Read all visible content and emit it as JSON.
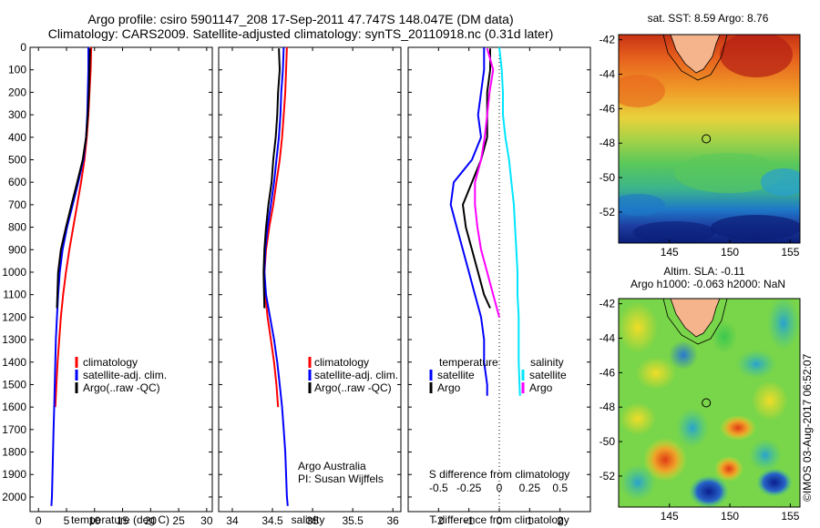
{
  "header": {
    "line1": "Argo profile: csiro 5901147_208 17-Sep-2011 47.747S 148.047E (DM data)",
    "line2": "Climatology: CARS2009. Satellite-adjusted climatology: synTS_20110918.nc (0.31d later)"
  },
  "colors": {
    "climatology": "#ff0000",
    "satellite": "#0000ff",
    "argo": "#000000",
    "sal_satellite": "#00e5ff",
    "sal_argo": "#ff00ff"
  },
  "chart_data": [
    {
      "type": "line",
      "id": "temperature",
      "xlabel": "temperature (deg C)",
      "xticks": [
        0,
        5,
        10,
        15,
        20,
        25,
        30
      ],
      "yticks": [
        0,
        100,
        200,
        300,
        400,
        500,
        600,
        700,
        800,
        900,
        1000,
        1100,
        1200,
        1300,
        1400,
        1500,
        1600,
        1700,
        1800,
        1900,
        2000
      ],
      "xlim": [
        -1.5,
        31
      ],
      "ylim": [
        0,
        2065
      ],
      "y_reversed": true,
      "legend": {
        "placement": "lower-left",
        "entries": [
          "climatology",
          "satellite-adj. clim.",
          "Argo(..raw -QC)"
        ]
      },
      "series": [
        {
          "name": "climatology",
          "color": "#ff0000",
          "x": [
            9.4,
            9.3,
            9.1,
            8.9,
            8.6,
            8.2,
            7.6,
            6.9,
            6.2,
            5.5,
            4.9,
            4.4,
            4.0,
            3.7,
            3.4,
            3.2,
            3.0
          ],
          "y": [
            0,
            100,
            200,
            300,
            400,
            500,
            600,
            700,
            800,
            900,
            1000,
            1100,
            1200,
            1300,
            1400,
            1500,
            1600
          ]
        },
        {
          "name": "satellite-adj. clim.",
          "color": "#0000ff",
          "x": [
            8.9,
            8.9,
            8.8,
            8.7,
            8.5,
            8.0,
            7.1,
            6.1,
            5.1,
            4.3,
            3.8,
            3.5,
            3.3,
            3.1,
            3.0,
            2.9,
            2.8,
            2.7,
            2.6,
            2.5,
            2.4,
            2.3
          ],
          "y": [
            0,
            100,
            200,
            300,
            400,
            500,
            600,
            700,
            800,
            900,
            1000,
            1100,
            1200,
            1300,
            1400,
            1500,
            1600,
            1700,
            1800,
            1900,
            2000,
            2040
          ]
        },
        {
          "name": "Argo(..raw -QC)",
          "color": "#000000",
          "x": [
            9.2,
            9.1,
            9.0,
            8.8,
            8.5,
            7.9,
            6.9,
            5.9,
            4.9,
            4.0,
            3.5,
            3.3
          ],
          "y": [
            5,
            100,
            200,
            300,
            400,
            500,
            600,
            700,
            800,
            900,
            1000,
            1160
          ]
        }
      ]
    },
    {
      "type": "line",
      "id": "salinity",
      "xlabel": "salinity",
      "xticks": [
        34,
        34.5,
        35,
        35.5,
        36
      ],
      "xlabels": [
        "34",
        "34.5",
        "35",
        "35.5",
        "36"
      ],
      "yticks": [
        0,
        100,
        200,
        300,
        400,
        500,
        600,
        700,
        800,
        900,
        1000,
        1100,
        1200,
        1300,
        1400,
        1500,
        1600,
        1700,
        1800,
        1900,
        2000
      ],
      "xlim": [
        33.83,
        36.1
      ],
      "ylim": [
        0,
        2065
      ],
      "y_reversed": true,
      "annotation": [
        "Argo Australia",
        "PI: Susan Wijffels"
      ],
      "legend": {
        "placement": "lower-right",
        "entries": [
          "climatology",
          "satellite-adj. clim.",
          "Argo(..raw -QC)"
        ]
      },
      "series": [
        {
          "name": "climatology",
          "color": "#ff0000",
          "x": [
            34.68,
            34.67,
            34.66,
            34.64,
            34.62,
            34.59,
            34.55,
            34.51,
            34.46,
            34.42,
            34.4,
            34.41,
            34.44,
            34.48,
            34.52,
            34.55,
            34.57
          ],
          "y": [
            0,
            100,
            200,
            300,
            400,
            500,
            600,
            700,
            800,
            900,
            1000,
            1100,
            1200,
            1300,
            1400,
            1500,
            1600
          ]
        },
        {
          "name": "satellite-adj. clim.",
          "color": "#0000ff",
          "x": [
            34.64,
            34.63,
            34.61,
            34.6,
            34.58,
            34.55,
            34.52,
            34.48,
            34.44,
            34.41,
            34.4,
            34.42,
            34.47,
            34.52,
            34.56,
            34.59,
            34.62,
            34.64,
            34.66,
            34.67,
            34.68,
            34.69
          ],
          "y": [
            0,
            100,
            200,
            300,
            400,
            500,
            600,
            700,
            800,
            900,
            1000,
            1100,
            1200,
            1300,
            1400,
            1500,
            1600,
            1700,
            1800,
            1900,
            2000,
            2040
          ]
        },
        {
          "name": "Argo(..raw -QC)",
          "color": "#000000",
          "x": [
            34.58,
            34.59,
            34.57,
            34.56,
            34.54,
            34.51,
            34.49,
            34.45,
            34.42,
            34.4,
            34.39,
            34.4
          ],
          "y": [
            5,
            100,
            200,
            300,
            400,
            500,
            600,
            700,
            800,
            900,
            1000,
            1160
          ]
        }
      ]
    },
    {
      "type": "line",
      "id": "difference",
      "xlabel": "T difference from climatology",
      "xlabel_top": "S difference from climatology",
      "xticks": [
        -2,
        -1,
        0,
        1,
        2
      ],
      "top_ticks": [
        -0.5,
        -0.25,
        0,
        0.25,
        0.5
      ],
      "yticks": [
        0,
        100,
        200,
        300,
        400,
        500,
        600,
        700,
        800,
        900,
        1000,
        1100,
        1200,
        1300,
        1400,
        1500,
        1600,
        1700,
        1800,
        1900,
        2000
      ],
      "xlim": [
        -3.0,
        3.0
      ],
      "ylim": [
        0,
        2065
      ],
      "y_reversed": true,
      "legend": {
        "placement": "lower-center",
        "groups": [
          "temperature",
          "salinity"
        ],
        "entries": [
          "satellite",
          "Argo",
          "satellite",
          "Argo"
        ]
      },
      "series": [
        {
          "name": "satellite",
          "group": "temperature",
          "color": "#0000ff",
          "x": [
            -0.5,
            -0.5,
            -0.6,
            -0.7,
            -0.6,
            -0.9,
            -1.5,
            -1.6,
            -1.4,
            -1.2,
            -1.0,
            -0.8,
            -0.6,
            -0.5,
            -0.5,
            -0.4,
            -0.4
          ],
          "y": [
            0,
            100,
            200,
            300,
            400,
            500,
            600,
            700,
            800,
            900,
            1000,
            1100,
            1200,
            1300,
            1400,
            1500,
            1550
          ]
        },
        {
          "name": "Argo",
          "group": "temperature",
          "color": "#000000",
          "x": [
            -0.3,
            -0.3,
            -0.4,
            -0.4,
            -0.4,
            -0.6,
            -0.9,
            -1.2,
            -1.1,
            -0.9,
            -0.7,
            -0.5,
            -0.3
          ],
          "y": [
            5,
            100,
            200,
            300,
            400,
            500,
            600,
            700,
            800,
            900,
            1000,
            1100,
            1160
          ]
        },
        {
          "name": "satellite",
          "group": "salinity",
          "color": "#00e5ff",
          "x": [
            0.0,
            0.02,
            0.03,
            0.03,
            0.05,
            0.08,
            0.1,
            0.12,
            0.13,
            0.14,
            0.15,
            0.15,
            0.16,
            0.16,
            0.16,
            0.17
          ],
          "y": [
            0,
            100,
            200,
            300,
            400,
            500,
            600,
            700,
            800,
            900,
            1000,
            1100,
            1200,
            1300,
            1400,
            1550
          ]
        },
        {
          "name": "Argo",
          "group": "salinity",
          "color": "#ff00ff",
          "x": [
            -0.1,
            -0.05,
            -0.08,
            -0.1,
            -0.12,
            -0.15,
            -0.2,
            -0.2,
            -0.18,
            -0.15,
            -0.1,
            -0.05,
            0.0
          ],
          "y": [
            5,
            100,
            200,
            300,
            400,
            500,
            600,
            700,
            800,
            900,
            1000,
            1100,
            1200
          ]
        }
      ]
    },
    {
      "type": "heatmap",
      "id": "sst_map",
      "title": "sat. SST: 8.59 Argo: 8.76",
      "xticks": [
        145,
        150,
        155
      ],
      "yticks": [
        -42,
        -44,
        -46,
        -48,
        -50,
        -52
      ],
      "xlim": [
        140.8,
        155.8
      ],
      "ylim": [
        -53.8,
        -41.7
      ],
      "marker": {
        "lon": 148.05,
        "lat": -47.75
      }
    },
    {
      "type": "heatmap",
      "id": "sla_map",
      "title": [
        "Altim. SLA: -0.11",
        "Argo h1000: -0.063 h2000: NaN"
      ],
      "xticks": [
        145,
        150,
        155
      ],
      "yticks": [
        -42,
        -44,
        -46,
        -48,
        -50,
        -52
      ],
      "xlim": [
        140.8,
        155.8
      ],
      "ylim": [
        -53.8,
        -41.7
      ],
      "marker": {
        "lon": 148.05,
        "lat": -47.75
      }
    }
  ],
  "credit": "©IMOS 03-Aug-2017 06:52:07"
}
